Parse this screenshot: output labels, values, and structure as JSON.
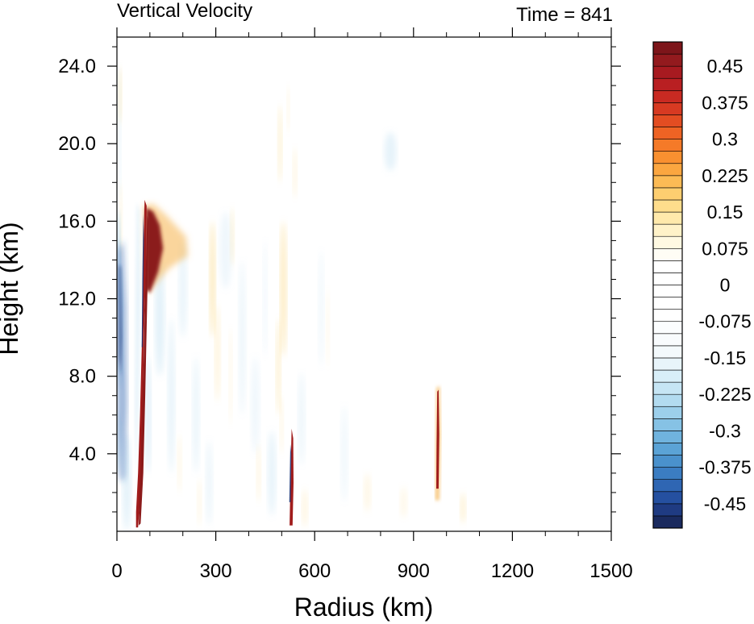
{
  "chart_data": {
    "type": "heatmap",
    "title": "Vertical Velocity",
    "subtitle": "Time = 841",
    "xlabel": "Radius (km)",
    "ylabel": "Height (km)",
    "xlim": [
      0,
      1500
    ],
    "ylim": [
      0,
      25.5
    ],
    "x_ticks": [
      0,
      300,
      600,
      900,
      1200,
      1500
    ],
    "x_tick_labels": [
      "0",
      "300",
      "600",
      "900",
      "1200",
      "1500"
    ],
    "y_ticks": [
      4,
      8,
      12,
      16,
      20,
      24
    ],
    "y_tick_labels": [
      "4.0",
      "8.0",
      "12.0",
      "16.0",
      "20.0",
      "24.0"
    ],
    "colorbar": {
      "levels": [
        -0.5,
        -0.475,
        -0.45,
        -0.425,
        -0.4,
        -0.375,
        -0.35,
        -0.325,
        -0.3,
        -0.275,
        -0.25,
        -0.225,
        -0.2,
        -0.175,
        -0.15,
        -0.125,
        -0.1,
        -0.075,
        -0.05,
        -0.025,
        0,
        0.025,
        0.05,
        0.075,
        0.1,
        0.125,
        0.15,
        0.175,
        0.2,
        0.225,
        0.25,
        0.275,
        0.3,
        0.325,
        0.35,
        0.375,
        0.4,
        0.425,
        0.45,
        0.475,
        0.5
      ],
      "label_values": [
        0.45,
        0.375,
        0.3,
        0.225,
        0.15,
        0.075,
        0,
        -0.075,
        -0.15,
        -0.225,
        -0.3,
        -0.375,
        -0.45
      ],
      "labels": [
        "0.45",
        "0.375",
        "0.3",
        "0.225",
        "0.15",
        "0.075",
        "0",
        "-0.075",
        "-0.15",
        "-0.225",
        "-0.3",
        "-0.375",
        "-0.45"
      ],
      "colors": [
        "#1a2a5e",
        "#1f3b82",
        "#2550a0",
        "#2f66b3",
        "#3b7dc2",
        "#4a91cc",
        "#5ba3d6",
        "#70b3de",
        "#86c2e5",
        "#9ccfeb",
        "#b2dbf0",
        "#c6e5f4",
        "#d8eef8",
        "#e8f4fa",
        "#f3f9fc",
        "#f8fbfd",
        "#fbfdfe",
        "#ffffff",
        "#ffffff",
        "#ffffff",
        "#ffffff",
        "#ffffff",
        "#fffdf5",
        "#fff9e2",
        "#fff2c8",
        "#ffe9ab",
        "#fedd8c",
        "#fdce70",
        "#fcbb55",
        "#fba640",
        "#f99030",
        "#f57a28",
        "#ee6324",
        "#e34d22",
        "#d73a22",
        "#c92a22",
        "#b91f22",
        "#a71a20",
        "#931a1e",
        "#7d151a"
      ]
    },
    "features": [
      {
        "kind": "updraft",
        "r_km": [
          55,
          110
        ],
        "z_km": [
          0.2,
          17
        ],
        "w_max": 0.5
      },
      {
        "kind": "outflow",
        "r_km": [
          85,
          215
        ],
        "z_km": [
          12.5,
          16.8
        ],
        "w_max": 0.5
      },
      {
        "kind": "downdraft",
        "r_km": [
          0,
          85
        ],
        "z_km": [
          1,
          17
        ],
        "w_min": -0.5
      },
      {
        "kind": "updraft",
        "r_km": [
          520,
          540
        ],
        "z_km": [
          0.3,
          5.2
        ],
        "w_max": 0.5
      },
      {
        "kind": "updraft",
        "r_km": [
          962,
          984
        ],
        "z_km": [
          1.5,
          7.5
        ],
        "w_max": 0.5
      }
    ]
  }
}
